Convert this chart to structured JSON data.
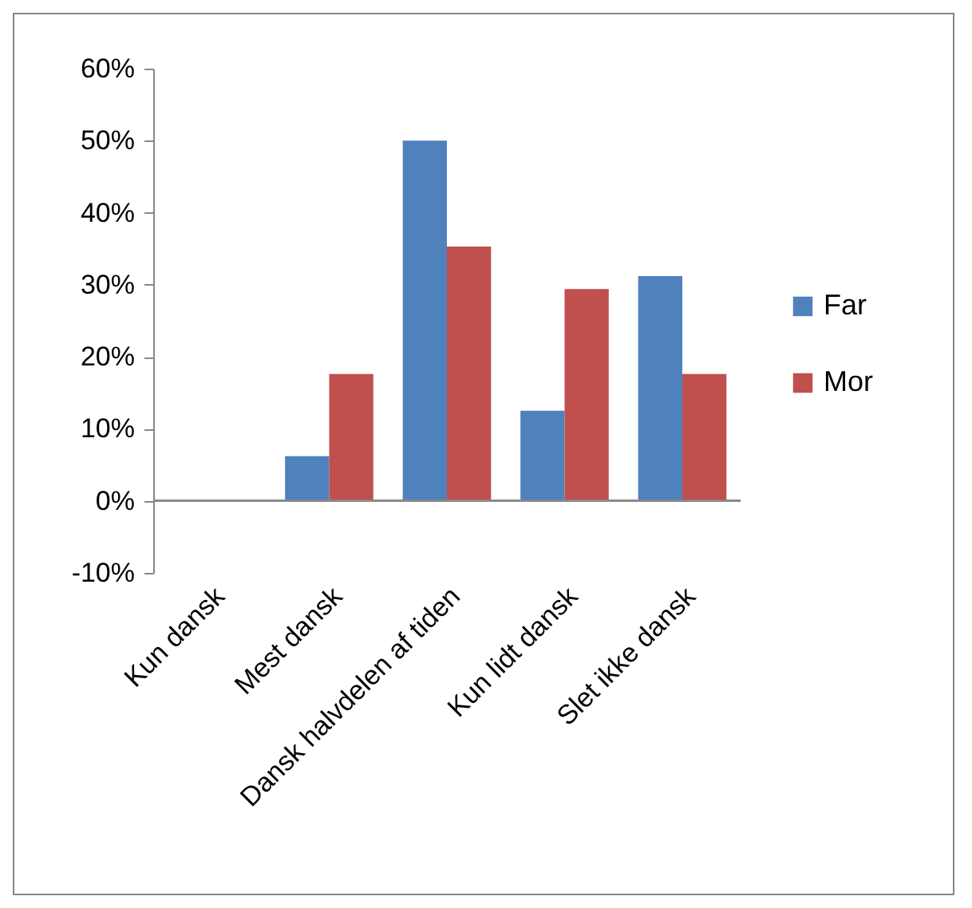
{
  "chart_data": {
    "type": "bar",
    "categories": [
      "Kun dansk",
      "Mest dansk",
      "Dansk halvdelen af tiden",
      "Kun lidt dansk",
      "Slet ikke dansk"
    ],
    "series": [
      {
        "name": "Far",
        "color": "#4f81bd",
        "values": [
          0,
          6.2,
          50,
          12.5,
          31.2
        ]
      },
      {
        "name": "Mor",
        "color": "#c0504d",
        "values": [
          0,
          17.6,
          35.3,
          29.4,
          17.6
        ]
      }
    ],
    "ylim": [
      -10,
      60
    ],
    "yticks": [
      {
        "value": -10,
        "label": "-10%"
      },
      {
        "value": 0,
        "label": "0%"
      },
      {
        "value": 10,
        "label": "10%"
      },
      {
        "value": 20,
        "label": "20%"
      },
      {
        "value": 30,
        "label": "30%"
      },
      {
        "value": 40,
        "label": "40%"
      },
      {
        "value": 50,
        "label": "50%"
      },
      {
        "value": 60,
        "label": "60%"
      }
    ],
    "legend": "right"
  }
}
